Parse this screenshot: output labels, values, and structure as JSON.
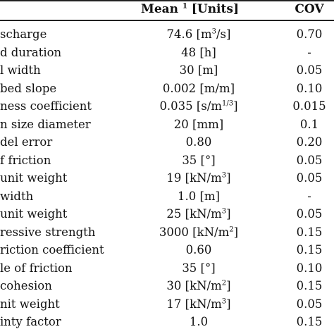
{
  "header": {
    "mean_label": "Mean",
    "mean_sup": "1",
    "mean_units": "[Units]",
    "cov_label": "COV"
  },
  "rows": [
    {
      "name": "scharge",
      "mean": "74.6 [m",
      "mean_sup": "3",
      "mean_tail": "/s]",
      "cov": "0.70"
    },
    {
      "name": "d duration",
      "mean": "48 [h]",
      "mean_sup": "",
      "mean_tail": "",
      "cov": "-"
    },
    {
      "name": "l width",
      "mean": "30 [m]",
      "mean_sup": "",
      "mean_tail": "",
      "cov": "0.05"
    },
    {
      "name": "bed slope",
      "mean": "0.002 [m/m]",
      "mean_sup": "",
      "mean_tail": "",
      "cov": "0.10"
    },
    {
      "name": "ness coefficient",
      "mean": "0.035 [s/m",
      "mean_sup": "1/3",
      "mean_tail": "]",
      "cov": "0.015"
    },
    {
      "name": "n size diameter",
      "mean": "20 [mm]",
      "mean_sup": "",
      "mean_tail": "",
      "cov": "0.1"
    },
    {
      "name": "del error",
      "mean": "0.80",
      "mean_sup": "",
      "mean_tail": "",
      "cov": "0.20"
    },
    {
      "name": "f friction",
      "mean": "35 [°]",
      "mean_sup": "",
      "mean_tail": "",
      "cov": "0.05"
    },
    {
      "name": "unit weight",
      "mean": "19 [kN/m",
      "mean_sup": "3",
      "mean_tail": "]",
      "cov": "0.05"
    },
    {
      "name": "width",
      "mean": "1.0 [m]",
      "mean_sup": "",
      "mean_tail": "",
      "cov": "-"
    },
    {
      "name": "unit weight",
      "mean": "25 [kN/m",
      "mean_sup": "3",
      "mean_tail": "]",
      "cov": "0.05"
    },
    {
      "name": "ressive strength",
      "mean": "3000 [kN/m",
      "mean_sup": "2",
      "mean_tail": "]",
      "cov": "0.15"
    },
    {
      "name": "riction coefficient",
      "mean": "0.60",
      "mean_sup": "",
      "mean_tail": "",
      "cov": "0.15"
    },
    {
      "name": "le of friction",
      "mean": "35 [°]",
      "mean_sup": "",
      "mean_tail": "",
      "cov": "0.10"
    },
    {
      "name": "cohesion",
      "mean": "30 [kN/m",
      "mean_sup": "2",
      "mean_tail": "]",
      "cov": "0.15"
    },
    {
      "name": "nit weight",
      "mean": "17 [kN/m",
      "mean_sup": "3",
      "mean_tail": "]",
      "cov": "0.05"
    },
    {
      "name": "inty factor",
      "mean": "1.0",
      "mean_sup": "",
      "mean_tail": "",
      "cov": "0.15"
    }
  ]
}
